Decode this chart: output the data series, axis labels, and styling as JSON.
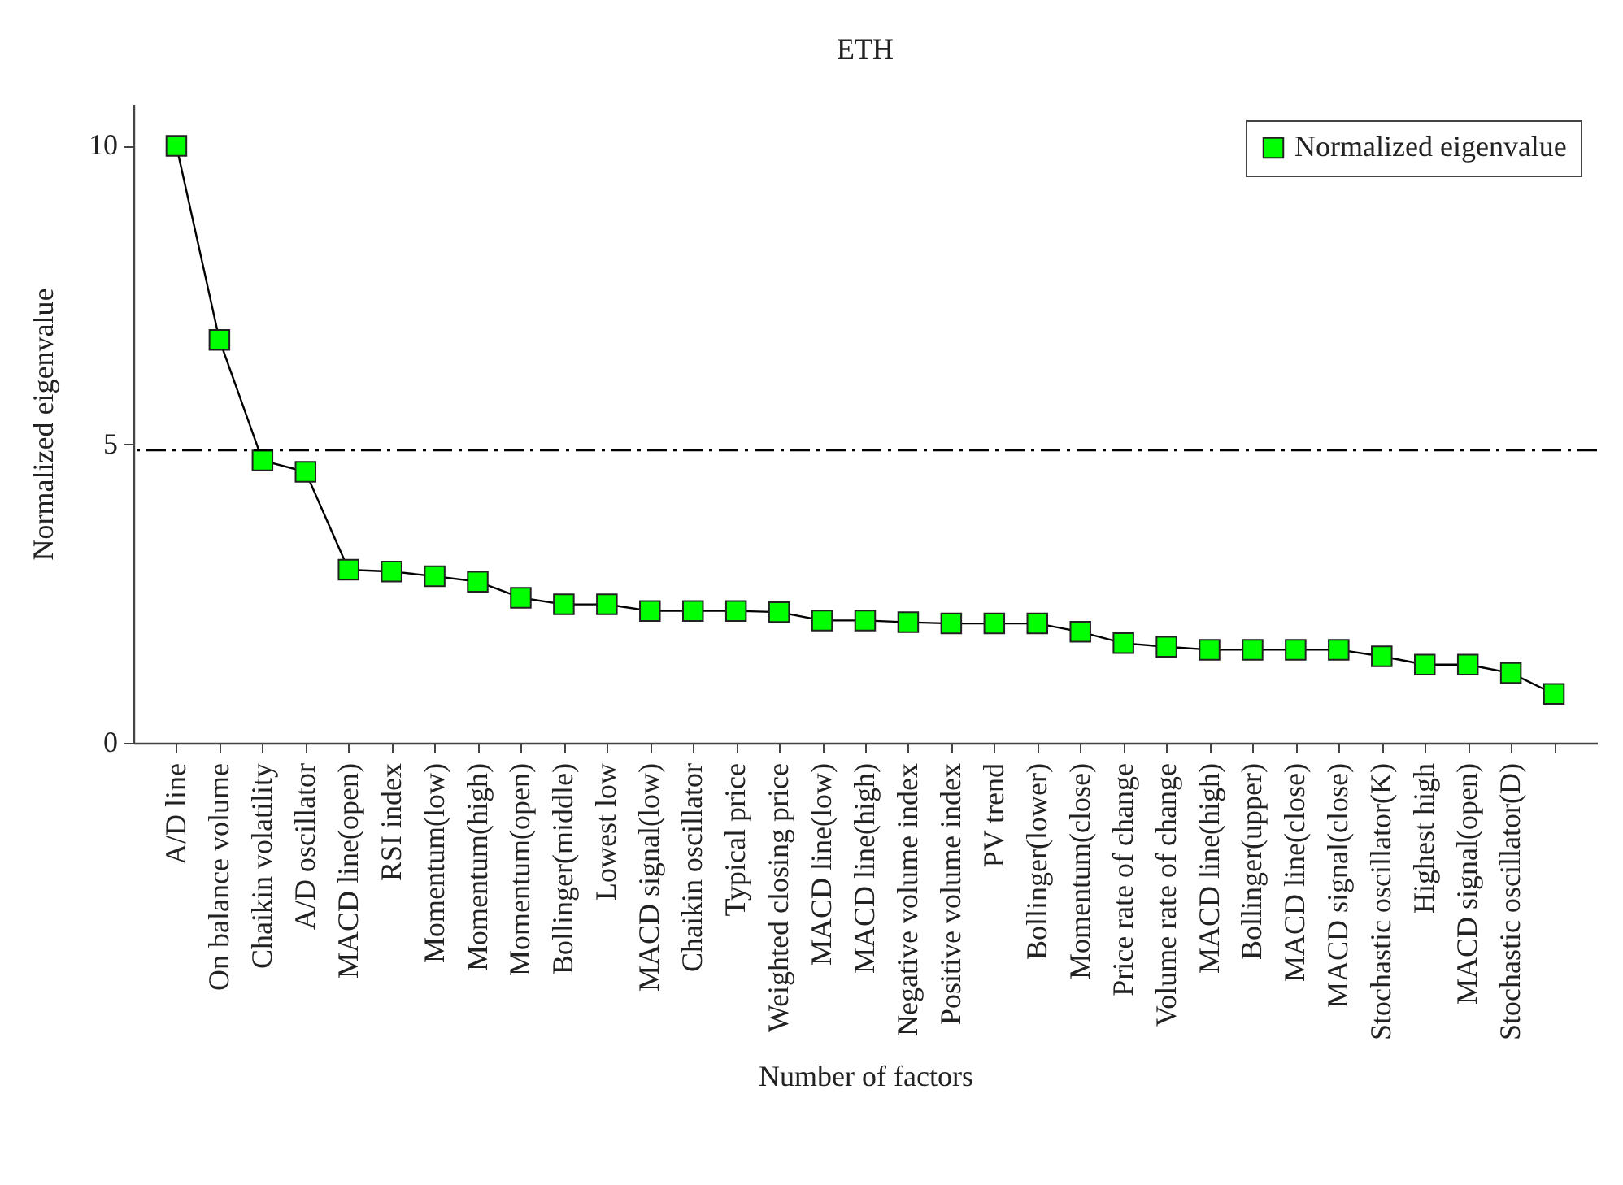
{
  "chart_data": {
    "type": "line",
    "title": "ETH",
    "xlabel": "Number of factors",
    "ylabel": "Normalized eigenvalue",
    "categories": [
      "A/D line",
      "On balance volume",
      "Chaikin volatility",
      "A/D oscillator",
      "MACD line(open)",
      "RSI index",
      "Momentum(low)",
      "Momentum(high)",
      "Momentum(open)",
      "Bollinger(middle)",
      "Lowest low",
      "MACD signal(low)",
      "Chaikin oscillator",
      "Typical price",
      "Weighted closing price",
      "MACD line(low)",
      "MACD line(high)",
      "Negative volume index",
      "Positive volume index",
      "PV trend",
      "Bollinger(lower)",
      "Momentum(close)",
      "Price rate of change",
      "Volume rate of change",
      "MACD line(high)",
      "Bollinger(upper)",
      "MACD line(close)",
      "MACD signal(close)",
      "Stochastic oscillator(K)",
      "Highest high",
      "MACD signal(open)",
      "Stochastic oscillator(D)",
      null
    ],
    "series": [
      {
        "name": "Normalized eigenvalue",
        "color": "#00ff00",
        "values": [
          10,
          6.75,
          4.73,
          4.54,
          2.9,
          2.87,
          2.79,
          2.7,
          2.43,
          2.32,
          2.32,
          2.21,
          2.21,
          2.21,
          2.19,
          2.05,
          2.05,
          2.02,
          2.0,
          2.0,
          2.0,
          1.86,
          1.67,
          1.61,
          1.56,
          1.56,
          1.56,
          1.56,
          1.45,
          1.31,
          1.31,
          1.17,
          0.82
        ]
      }
    ],
    "ylim": [
      0,
      10.7
    ],
    "yticks": [
      0,
      5,
      10
    ],
    "ref_lines": [
      {
        "axis": "y",
        "value": 4.9,
        "color": "#000000",
        "line_style": "dashdot"
      }
    ],
    "legend": "top right",
    "marker": "square",
    "line_style": "solid"
  }
}
